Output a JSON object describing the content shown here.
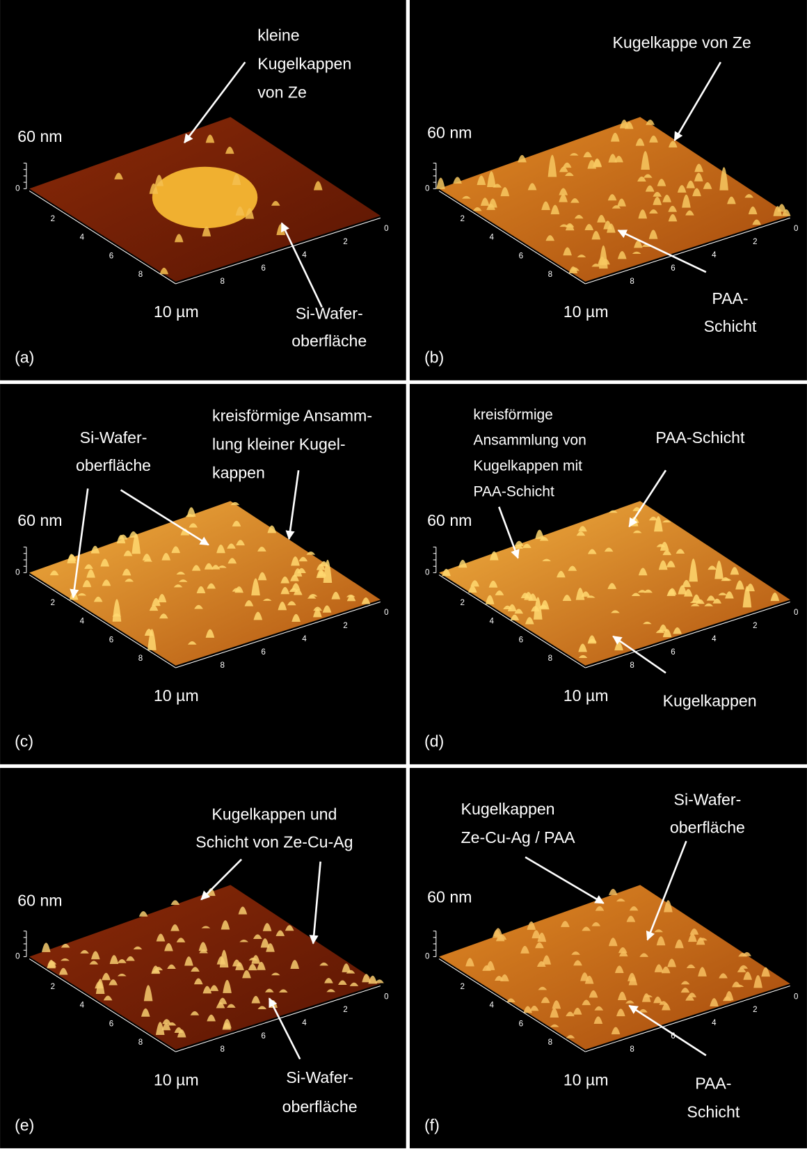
{
  "panels": [
    {
      "label": "(a)",
      "z_label": "60 nm",
      "xy_label": "10 µm",
      "z_tick": "0",
      "left_ticks": [
        "2",
        "4",
        "6",
        "8"
      ],
      "right_ticks": [
        "0",
        "2",
        "4",
        "6",
        "8"
      ],
      "annotations": [
        {
          "lines": [
            "kleine",
            "Kugelkappen",
            "von Ze"
          ]
        },
        {
          "lines": [
            "Si-Wafer-",
            "oberfläche"
          ]
        }
      ]
    },
    {
      "label": "(b)",
      "z_label": "60 nm",
      "xy_label": "10 µm",
      "z_tick": "0",
      "left_ticks": [
        "2",
        "4",
        "6",
        "8"
      ],
      "right_ticks": [
        "0",
        "2",
        "4",
        "6",
        "8"
      ],
      "annotations": [
        {
          "lines": [
            "Kugelkappe von Ze"
          ]
        },
        {
          "lines": [
            "PAA-",
            "Schicht"
          ]
        }
      ]
    },
    {
      "label": "(c)",
      "z_label": "60 nm",
      "xy_label": "10 µm",
      "z_tick": "0",
      "left_ticks": [
        "2",
        "4",
        "6",
        "8"
      ],
      "right_ticks": [
        "0",
        "2",
        "4",
        "6",
        "8"
      ],
      "annotations": [
        {
          "lines": [
            "Si-Wafer-",
            "oberfläche"
          ]
        },
        {
          "lines": [
            "kreisförmige Ansamm-",
            "lung kleiner Kugel-",
            "kappen"
          ]
        }
      ]
    },
    {
      "label": "(d)",
      "z_label": "60 nm",
      "xy_label": "10 µm",
      "z_tick": "0",
      "left_ticks": [
        "2",
        "4",
        "6",
        "8"
      ],
      "right_ticks": [
        "0",
        "2",
        "4",
        "6",
        "8"
      ],
      "annotations": [
        {
          "lines": [
            "kreisförmige",
            "Ansammlung von",
            "Kugelkappen mit",
            "PAA-Schicht"
          ]
        },
        {
          "lines": [
            "PAA-Schicht"
          ]
        },
        {
          "lines": [
            "Kugelkappen"
          ]
        }
      ]
    },
    {
      "label": "(e)",
      "z_label": "60 nm",
      "xy_label": "10 µm",
      "z_tick": "0",
      "left_ticks": [
        "2",
        "4",
        "6",
        "8"
      ],
      "right_ticks": [
        "0",
        "2",
        "4",
        "6",
        "8"
      ],
      "annotations": [
        {
          "lines": [
            "Kugelkappen und",
            "Schicht von Ze-Cu-Ag"
          ]
        },
        {
          "lines": [
            "Si-Wafer-",
            "oberfläche"
          ]
        }
      ]
    },
    {
      "label": "(f)",
      "z_label": "60 nm",
      "xy_label": "10 µm",
      "z_tick": "0",
      "left_ticks": [
        "2",
        "4",
        "6",
        "8"
      ],
      "right_ticks": [
        "0",
        "2",
        "4",
        "6",
        "8"
      ],
      "annotations": [
        {
          "lines": [
            "Kugelkappen",
            "Ze-Cu-Ag / PAA"
          ]
        },
        {
          "lines": [
            "Si-Wafer-",
            "oberfläche"
          ]
        },
        {
          "lines": [
            "PAA-",
            "Schicht"
          ]
        }
      ]
    }
  ]
}
